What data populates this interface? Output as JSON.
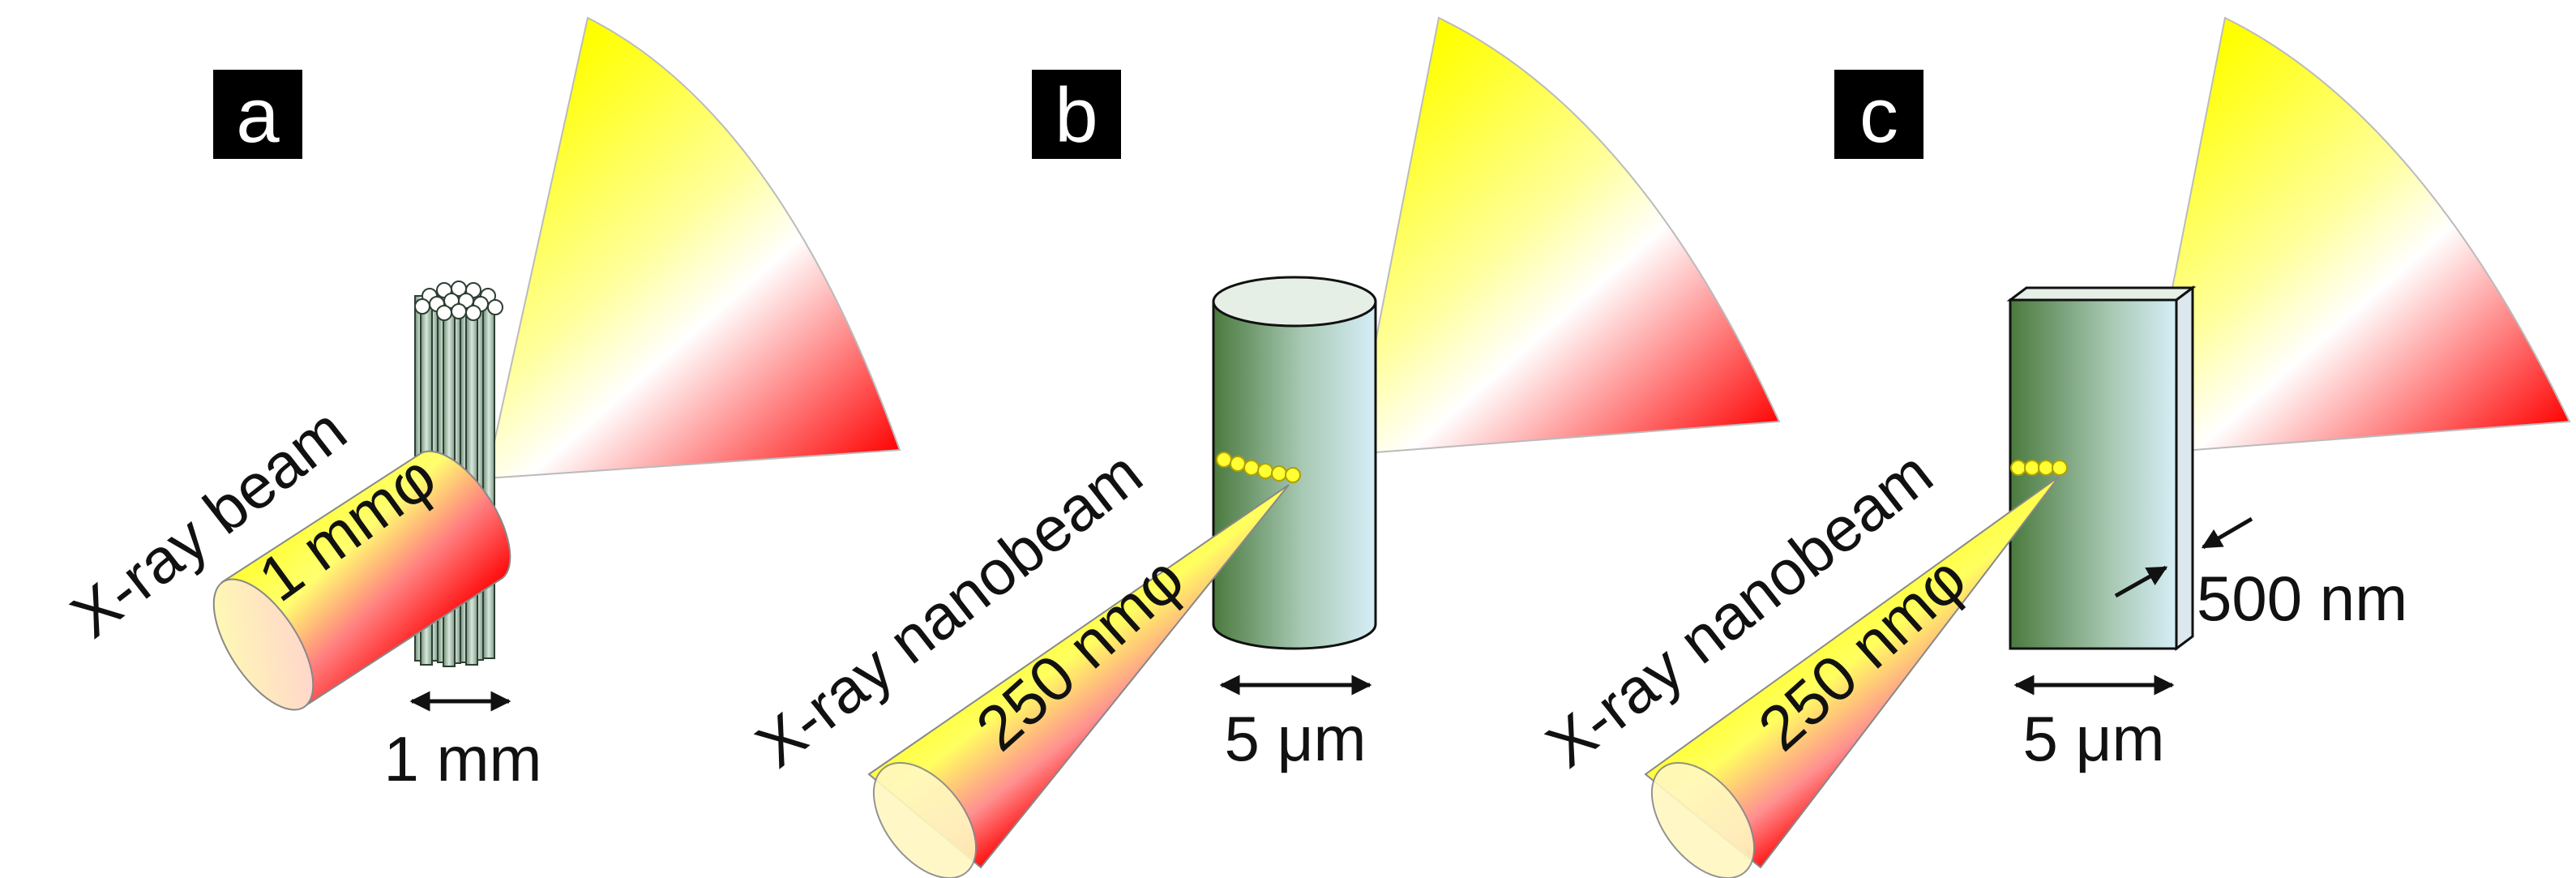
{
  "panels": [
    {
      "badge": "a",
      "beam_label": "X-ray beam",
      "beam_size": "1 mmφ",
      "dimension": "1 mm"
    },
    {
      "badge": "b",
      "beam_label": "X-ray nanobeam",
      "beam_size": "250 nmφ",
      "dimension": "5 μm"
    },
    {
      "badge": "c",
      "beam_label": "X-ray nanobeam",
      "beam_size": "250 nmφ",
      "dimension": "5 μm",
      "thickness": "500 nm"
    }
  ],
  "colors": {
    "beam_yellow": "#ffff00",
    "beam_red": "#ff0000",
    "sample_green": "#4a7a3e",
    "sample_light_blue": "#d6eef7",
    "focus_dot": "#ffff33",
    "badge_background": "#000000"
  }
}
